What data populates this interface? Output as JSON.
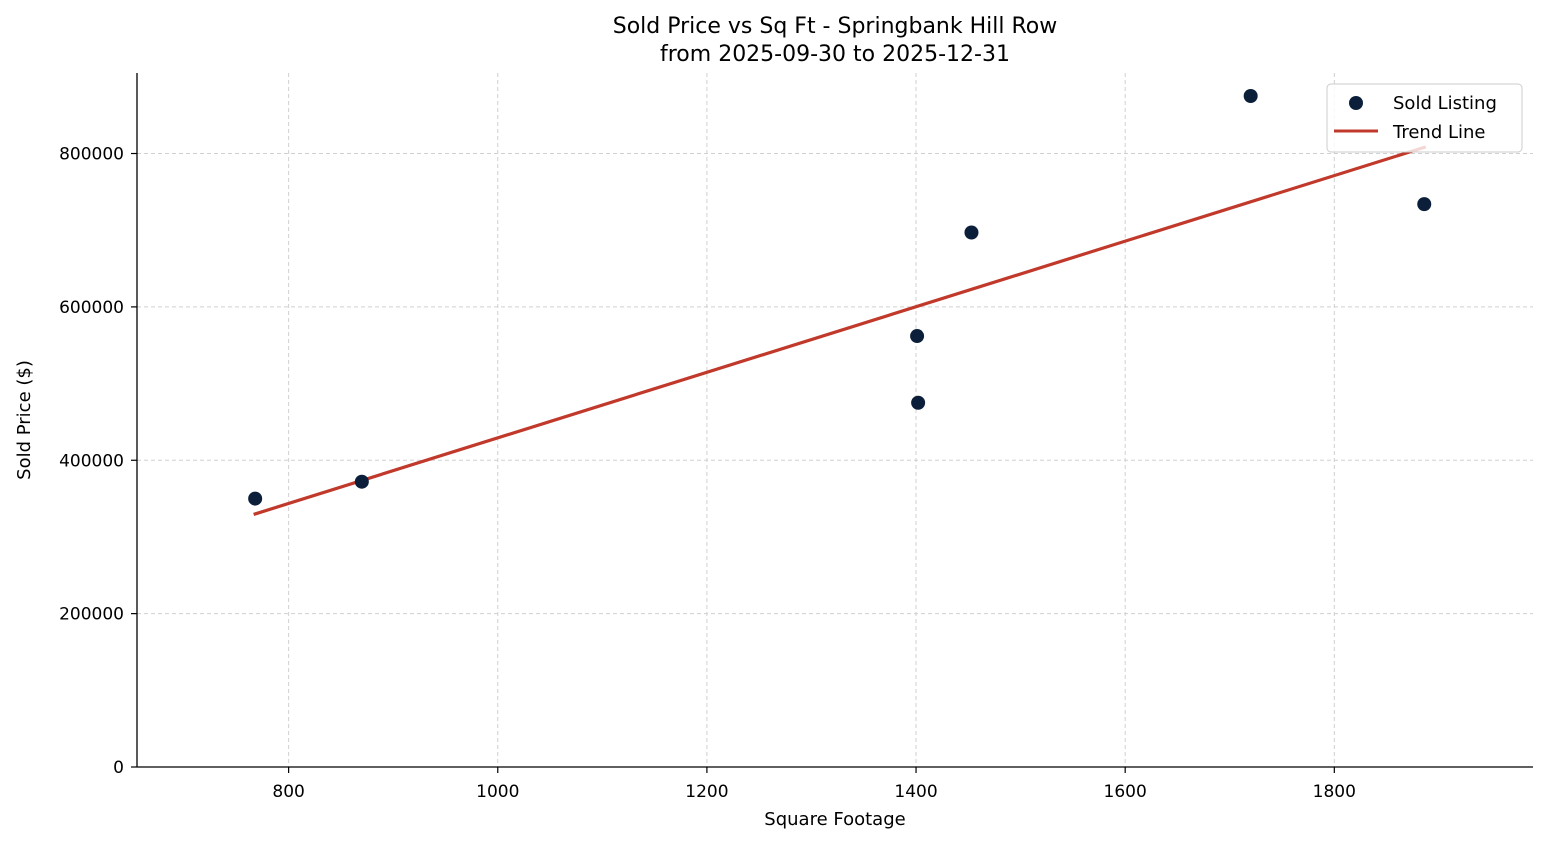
{
  "chart_data": {
    "type": "scatter",
    "title": "Sold Price vs Sq Ft - Springbank Hill Row",
    "subtitle": "from 2025-09-30 to 2025-12-31",
    "xlabel": "Square Footage",
    "ylabel": "Sold Price ($)",
    "xlim": [
      655,
      1990
    ],
    "ylim": [
      0,
      905000
    ],
    "xticks": [
      800,
      1000,
      1200,
      1400,
      1600,
      1800
    ],
    "yticks": [
      0,
      200000,
      400000,
      600000,
      800000
    ],
    "grid": true,
    "legend_position": "top-right",
    "series": [
      {
        "name": "Sold Listing",
        "kind": "scatter",
        "color": "#0b1f3a",
        "points": [
          {
            "x": 768,
            "y": 350000
          },
          {
            "x": 870,
            "y": 372000
          },
          {
            "x": 1401,
            "y": 562000
          },
          {
            "x": 1402,
            "y": 475000
          },
          {
            "x": 1453,
            "y": 697000
          },
          {
            "x": 1720,
            "y": 875000
          },
          {
            "x": 1886,
            "y": 734000
          }
        ]
      },
      {
        "name": "Trend Line",
        "kind": "line",
        "color": "#c0392b",
        "points": [
          {
            "x": 768,
            "y": 330000
          },
          {
            "x": 1886,
            "y": 808000
          }
        ]
      }
    ]
  }
}
